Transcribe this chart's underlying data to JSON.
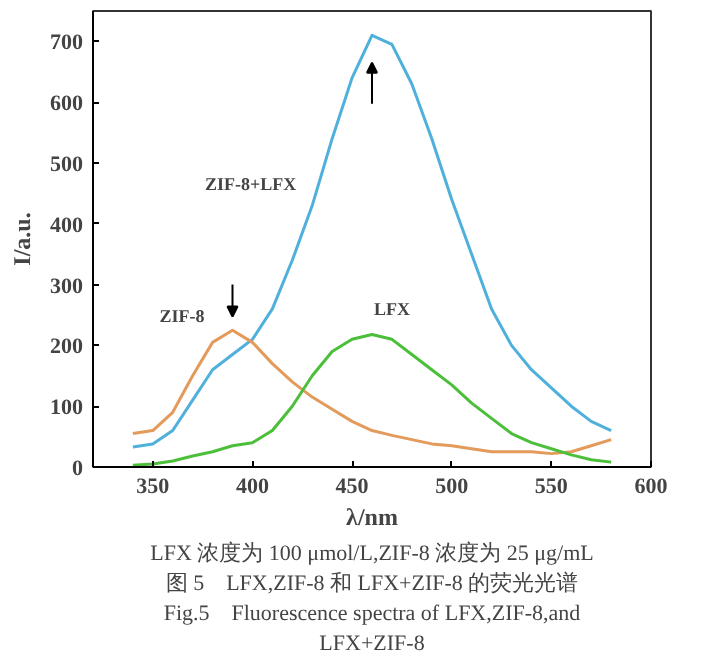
{
  "chart_data": {
    "type": "line",
    "xlabel": "λ/nm",
    "ylabel": "I/a.u.",
    "x": [
      340,
      350,
      360,
      370,
      380,
      390,
      400,
      410,
      420,
      430,
      440,
      450,
      460,
      470,
      480,
      490,
      500,
      510,
      520,
      530,
      540,
      550,
      560,
      570,
      580
    ],
    "series": [
      {
        "name": "ZIF-8+LFX",
        "color": "#4fb0dc",
        "values": [
          33,
          38,
          60,
          110,
          160,
          185,
          210,
          260,
          340,
          430,
          540,
          640,
          710,
          695,
          630,
          540,
          440,
          350,
          260,
          200,
          160,
          130,
          100,
          75,
          60
        ]
      },
      {
        "name": "ZIF-8",
        "color": "#e39a5a",
        "values": [
          55,
          60,
          90,
          150,
          205,
          225,
          205,
          170,
          140,
          115,
          95,
          75,
          60,
          52,
          45,
          38,
          35,
          30,
          25,
          25,
          25,
          22,
          25,
          35,
          45
        ]
      },
      {
        "name": "LFX",
        "color": "#4cbf3a",
        "values": [
          3,
          5,
          10,
          18,
          25,
          35,
          40,
          60,
          100,
          150,
          190,
          210,
          218,
          210,
          185,
          160,
          135,
          105,
          80,
          55,
          40,
          30,
          20,
          12,
          8
        ]
      }
    ],
    "xlim": [
      320,
      600
    ],
    "ylim": [
      0,
      750
    ],
    "xticks": [
      350,
      400,
      450,
      500,
      550,
      600
    ],
    "yticks": [
      0,
      100,
      200,
      300,
      400,
      500,
      600,
      700
    ],
    "annotations": [
      "LFX 浓度为 100 μmol/L,ZIF-8 浓度为 25 μg/mL",
      "图 5　LFX,ZIF-8 和 LFX+ZIF-8 的荧光光谱",
      "Fig.5　Fluorescence spectra of LFX,ZIF-8,and",
      "LFX+ZIF-8"
    ]
  }
}
